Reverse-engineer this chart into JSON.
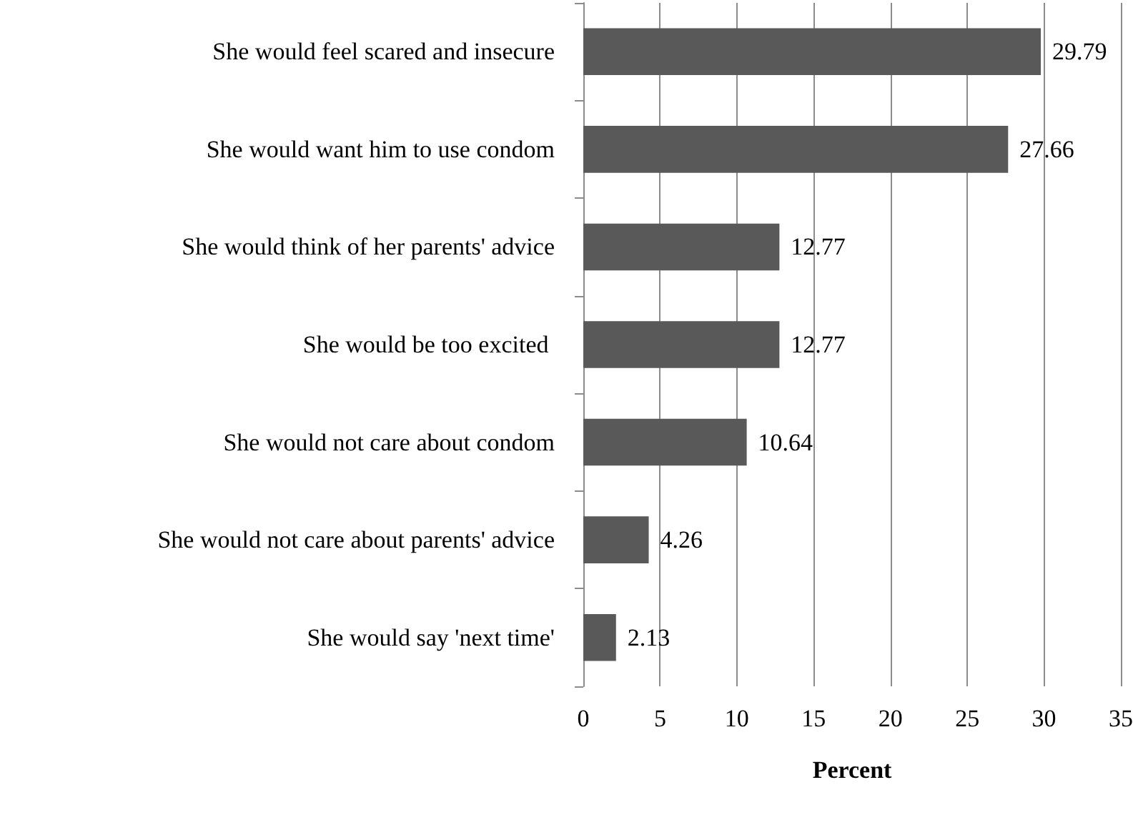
{
  "chart_data": {
    "type": "bar",
    "orientation": "horizontal",
    "xlabel": "Percent",
    "categories": [
      "She would feel scared and insecure",
      "She would want him to use condom",
      "She would think of her parents' advice",
      "She would be too excited ",
      "She would not care about condom",
      "She would not care about parents' advice",
      "She would say 'next time'"
    ],
    "values": [
      29.79,
      27.66,
      12.77,
      12.77,
      10.64,
      4.26,
      2.13
    ],
    "color": "#595959",
    "xlim": [
      0,
      35
    ],
    "xticks": [
      0,
      5,
      10,
      15,
      20,
      25,
      30,
      35
    ],
    "grid": "x",
    "data_labels": true
  }
}
